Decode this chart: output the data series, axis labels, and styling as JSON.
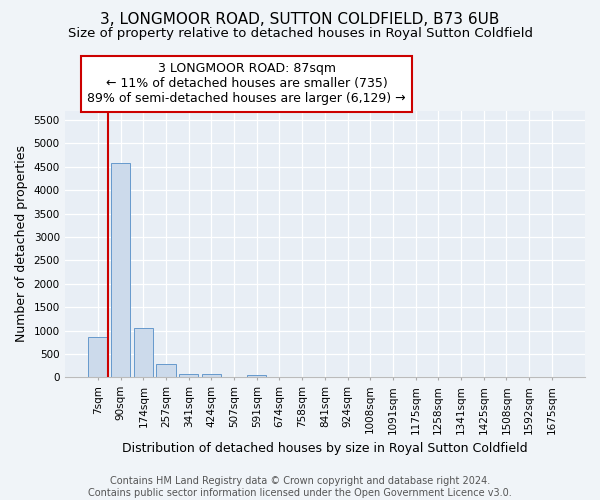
{
  "title": "3, LONGMOOR ROAD, SUTTON COLDFIELD, B73 6UB",
  "subtitle": "Size of property relative to detached houses in Royal Sutton Coldfield",
  "xlabel": "Distribution of detached houses by size in Royal Sutton Coldfield",
  "ylabel": "Number of detached properties",
  "footer_line1": "Contains HM Land Registry data © Crown copyright and database right 2024.",
  "footer_line2": "Contains public sector information licensed under the Open Government Licence v3.0.",
  "bar_categories": [
    "7sqm",
    "90sqm",
    "174sqm",
    "257sqm",
    "341sqm",
    "424sqm",
    "507sqm",
    "591sqm",
    "674sqm",
    "758sqm",
    "841sqm",
    "924sqm",
    "1008sqm",
    "1091sqm",
    "1175sqm",
    "1258sqm",
    "1341sqm",
    "1425sqm",
    "1508sqm",
    "1592sqm",
    "1675sqm"
  ],
  "bar_values": [
    870,
    4580,
    1060,
    290,
    80,
    75,
    0,
    55,
    0,
    0,
    0,
    0,
    0,
    0,
    0,
    0,
    0,
    0,
    0,
    0,
    0
  ],
  "bar_color": "#ccdaeb",
  "bar_edge_color": "#6699cc",
  "ylim": [
    0,
    5700
  ],
  "yticks": [
    0,
    500,
    1000,
    1500,
    2000,
    2500,
    3000,
    3500,
    4000,
    4500,
    5000,
    5500
  ],
  "vline_color": "#cc0000",
  "annotation_line1": "3 LONGMOOR ROAD: 87sqm",
  "annotation_line2": "← 11% of detached houses are smaller (735)",
  "annotation_line3": "89% of semi-detached houses are larger (6,129) →",
  "annotation_box_color": "#cc0000",
  "bg_color": "#f0f4f8",
  "plot_bg_color": "#e8eef5",
  "grid_color": "#ffffff",
  "title_fontsize": 11,
  "subtitle_fontsize": 9.5,
  "annotation_fontsize": 9,
  "ylabel_fontsize": 9,
  "xlabel_fontsize": 9,
  "tick_fontsize": 7.5,
  "footer_fontsize": 7
}
